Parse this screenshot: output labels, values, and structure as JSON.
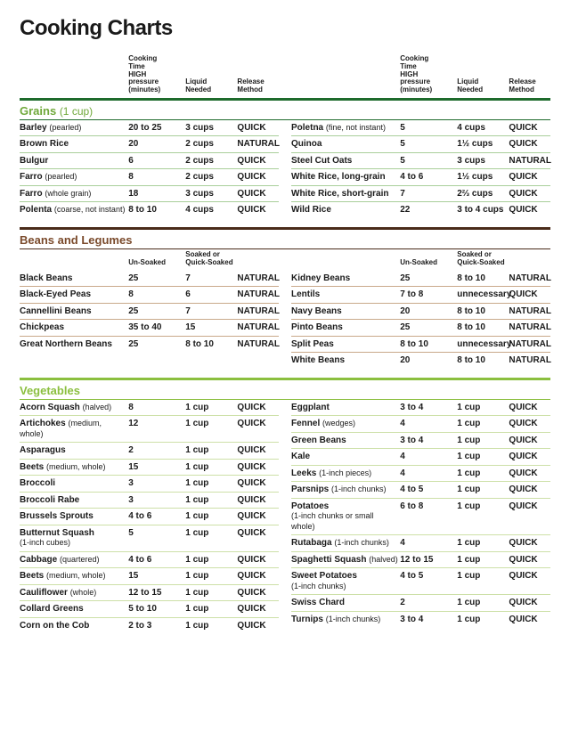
{
  "title": "Cooking Charts",
  "colors": {
    "grains_rule": "#1e6b2c",
    "grains_row": "#a9cf9a",
    "grains_title": "#6fa83a",
    "beans_rule": "#4a2b1a",
    "beans_row": "#c9a98a",
    "beans_title": "#7a4a2b",
    "veg_rule": "#8bbf3f",
    "veg_row": "#cde0a8",
    "veg_title": "#8bbf3f"
  },
  "headers_main": {
    "name": "",
    "a": "Cooking\nTime\nHIGH\npressure\n(minutes)",
    "b": "Liquid\nNeeded",
    "c": "Release\nMethod"
  },
  "headers_beans": {
    "name": "",
    "a": "Un-Soaked",
    "b": "Soaked or\nQuick-Soaked",
    "c": ""
  },
  "sections": [
    {
      "key": "grains",
      "title": "Grains",
      "sub": "(1 cup)",
      "header_style": "main",
      "show_header_right": true,
      "left": [
        {
          "name": "Barley",
          "note": "(pearled)",
          "a": "20 to 25",
          "b": "3 cups",
          "c": "QUICK"
        },
        {
          "name": "Brown Rice",
          "note": "",
          "a": "20",
          "b": "2 cups",
          "c": "NATURAL"
        },
        {
          "name": "Bulgur",
          "note": "",
          "a": "6",
          "b": "2 cups",
          "c": "QUICK"
        },
        {
          "name": "Farro",
          "note": "(pearled)",
          "a": "8",
          "b": "2 cups",
          "c": "QUICK"
        },
        {
          "name": "Farro",
          "note": "(whole grain)",
          "a": "18",
          "b": "3 cups",
          "c": "QUICK"
        },
        {
          "name": "Polenta",
          "note": "(coarse, not instant)",
          "a": "8 to 10",
          "b": "4 cups",
          "c": "QUICK"
        }
      ],
      "right": [
        {
          "name": "Poletna",
          "note": "(fine, not instant)",
          "a": "5",
          "b": "4 cups",
          "c": "QUICK"
        },
        {
          "name": "Quinoa",
          "note": "",
          "a": "5",
          "b": "1½ cups",
          "c": "QUICK"
        },
        {
          "name": "Steel Cut Oats",
          "note": "",
          "a": "5",
          "b": "3 cups",
          "c": "NATURAL"
        },
        {
          "name": "White Rice, long-grain",
          "note": "",
          "a": "4 to 6",
          "b": "1½ cups",
          "c": "QUICK"
        },
        {
          "name": "White Rice, short-grain",
          "note": "",
          "a": "7",
          "b": "2⅔ cups",
          "c": "QUICK"
        },
        {
          "name": "Wild Rice",
          "note": "",
          "a": "22",
          "b": "3 to 4 cups",
          "c": "QUICK"
        }
      ]
    },
    {
      "key": "beans",
      "title": "Beans and Legumes",
      "sub": "",
      "header_style": "beans",
      "show_header_right": true,
      "left": [
        {
          "name": "Black Beans",
          "note": "",
          "a": "25",
          "b": "7",
          "c": "NATURAL"
        },
        {
          "name": "Black-Eyed Peas",
          "note": "",
          "a": "8",
          "b": "6",
          "c": "NATURAL"
        },
        {
          "name": "Cannellini Beans",
          "note": "",
          "a": "25",
          "b": "7",
          "c": "NATURAL"
        },
        {
          "name": "Chickpeas",
          "note": "",
          "a": "35 to 40",
          "b": "15",
          "c": "NATURAL"
        },
        {
          "name": "Great Northern Beans",
          "note": "",
          "a": "25",
          "b": "8 to 10",
          "c": "NATURAL"
        }
      ],
      "right": [
        {
          "name": "Kidney Beans",
          "note": "",
          "a": "25",
          "b": "8 to 10",
          "c": "NATURAL"
        },
        {
          "name": "Lentils",
          "note": "",
          "a": "7 to 8",
          "b": "unnecessary",
          "c": "QUICK"
        },
        {
          "name": "Navy Beans",
          "note": "",
          "a": "20",
          "b": "8 to 10",
          "c": "NATURAL"
        },
        {
          "name": "Pinto Beans",
          "note": "",
          "a": "25",
          "b": "8 to 10",
          "c": "NATURAL"
        },
        {
          "name": "Split Peas",
          "note": "",
          "a": "8 to 10",
          "b": "unnecessary",
          "c": "NATURAL"
        },
        {
          "name": "White Beans",
          "note": "",
          "a": "20",
          "b": "8 to 10",
          "c": "NATURAL"
        }
      ]
    },
    {
      "key": "veg",
      "title": "Vegetables",
      "sub": "",
      "header_style": "none",
      "show_header_right": false,
      "left": [
        {
          "name": "Acorn Squash",
          "note": "(halved)",
          "a": "8",
          "b": "1 cup",
          "c": "QUICK"
        },
        {
          "name": "Artichokes",
          "note": "(medium, whole)",
          "a": "12",
          "b": "1 cup",
          "c": "QUICK"
        },
        {
          "name": "Asparagus",
          "note": "",
          "a": "2",
          "b": "1 cup",
          "c": "QUICK"
        },
        {
          "name": "Beets",
          "note": "(medium, whole)",
          "a": "15",
          "b": "1 cup",
          "c": "QUICK"
        },
        {
          "name": "Broccoli",
          "note": "",
          "a": "3",
          "b": "1 cup",
          "c": "QUICK"
        },
        {
          "name": "Broccoli Rabe",
          "note": "",
          "a": "3",
          "b": "1 cup",
          "c": "QUICK"
        },
        {
          "name": "Brussels Sprouts",
          "note": "",
          "a": "4 to 6",
          "b": "1 cup",
          "c": "QUICK"
        },
        {
          "name": "Butternut Squash",
          "note": "\n(1-inch cubes)",
          "a": "5",
          "b": "1 cup",
          "c": "QUICK"
        },
        {
          "name": "Cabbage",
          "note": "(quartered)",
          "a": "4 to 6",
          "b": "1 cup",
          "c": "QUICK"
        },
        {
          "name": "Beets",
          "note": "(medium, whole)",
          "a": "15",
          "b": "1 cup",
          "c": "QUICK"
        },
        {
          "name": "Cauliflower",
          "note": "(whole)",
          "a": "12 to 15",
          "b": "1 cup",
          "c": "QUICK"
        },
        {
          "name": "Collard Greens",
          "note": "",
          "a": "5 to 10",
          "b": "1 cup",
          "c": "QUICK"
        },
        {
          "name": "Corn on the Cob",
          "note": "",
          "a": "2 to 3",
          "b": "1 cup",
          "c": "QUICK"
        }
      ],
      "right": [
        {
          "name": "Eggplant",
          "note": "",
          "a": "3 to 4",
          "b": "1 cup",
          "c": "QUICK"
        },
        {
          "name": "Fennel",
          "note": "(wedges)",
          "a": "4",
          "b": "1 cup",
          "c": "QUICK"
        },
        {
          "name": "Green Beans",
          "note": "",
          "a": "3 to 4",
          "b": "1 cup",
          "c": "QUICK"
        },
        {
          "name": "Kale",
          "note": "",
          "a": "4",
          "b": "1 cup",
          "c": "QUICK"
        },
        {
          "name": "Leeks",
          "note": "(1-inch pieces)",
          "a": "4",
          "b": "1 cup",
          "c": "QUICK"
        },
        {
          "name": "Parsnips",
          "note": "(1-inch chunks)",
          "a": "4 to 5",
          "b": "1 cup",
          "c": "QUICK"
        },
        {
          "name": "Potatoes",
          "note": "\n(1-inch chunks or small whole)",
          "a": "6 to 8",
          "b": "1 cup",
          "c": "QUICK"
        },
        {
          "name": "Rutabaga",
          "note": "(1-inch chunks)",
          "a": "4",
          "b": "1 cup",
          "c": "QUICK"
        },
        {
          "name": "Spaghetti Squash",
          "note": "(halved)",
          "a": "12 to 15",
          "b": "1 cup",
          "c": "QUICK"
        },
        {
          "name": "Sweet Potatoes",
          "note": "\n(1-inch chunks)",
          "a": "4 to 5",
          "b": "1 cup",
          "c": "QUICK"
        },
        {
          "name": "Swiss Chard",
          "note": "",
          "a": "2",
          "b": "1 cup",
          "c": "QUICK"
        },
        {
          "name": "Turnips",
          "note": "(1-inch chunks)",
          "a": "3 to 4",
          "b": "1 cup",
          "c": "QUICK"
        }
      ]
    }
  ]
}
